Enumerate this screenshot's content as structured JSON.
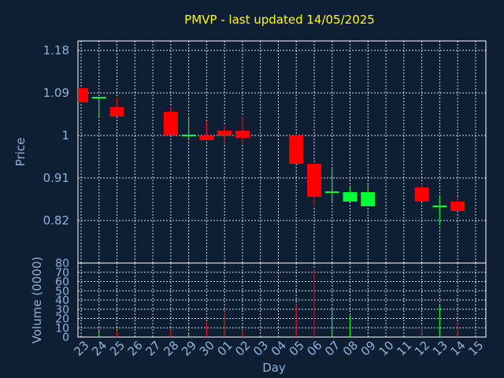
{
  "chart_data": {
    "type": "candlestick",
    "title": "PMVP - last updated 14/05/2025",
    "price_panel": {
      "ylabel": "Price",
      "ylim": [
        0.73,
        1.2
      ],
      "yticks": [
        "1.18",
        "1.09",
        "1",
        "0.91",
        "0.82"
      ],
      "ytick_values": [
        1.18,
        1.09,
        1.0,
        0.91,
        0.82
      ],
      "grid": true
    },
    "volume_panel": {
      "ylabel": "Volume (0000)",
      "ylim": [
        0,
        80
      ],
      "yticks": [
        "80",
        "70",
        "60",
        "50",
        "40",
        "30",
        "20",
        "10",
        "0"
      ],
      "ytick_values": [
        80,
        70,
        60,
        50,
        40,
        30,
        20,
        10,
        0
      ],
      "grid": true
    },
    "xlabel": "Day",
    "x_ticks": [
      "23",
      "24",
      "25",
      "26",
      "27",
      "28",
      "29",
      "30",
      "01",
      "02",
      "03",
      "04",
      "05",
      "06",
      "07",
      "08",
      "09",
      "10",
      "11",
      "12",
      "13",
      "14",
      "15"
    ],
    "colors": {
      "up": "#00ff33",
      "down": "#ff0000",
      "background": "#0f1f33",
      "grid": "#ffffff",
      "text": "#8fb4dc",
      "title": "#ffff00"
    },
    "candles": [
      {
        "day": "23",
        "open": 1.1,
        "high": 1.1,
        "low": 1.07,
        "close": 1.07,
        "volume": 0
      },
      {
        "day": "24",
        "open": 1.08,
        "high": 1.08,
        "low": 1.04,
        "close": 1.08,
        "volume": 8
      },
      {
        "day": "25",
        "open": 1.06,
        "high": 1.08,
        "low": 1.04,
        "close": 1.04,
        "volume": 7
      },
      {
        "day": "28",
        "open": 1.05,
        "high": 1.06,
        "low": 1.0,
        "close": 1.0,
        "volume": 8
      },
      {
        "day": "29",
        "open": 1.0,
        "high": 1.04,
        "low": 0.99,
        "close": 1.0,
        "volume": 5
      },
      {
        "day": "30",
        "open": 1.0,
        "high": 1.03,
        "low": 0.99,
        "close": 0.99,
        "volume": 15
      },
      {
        "day": "01",
        "open": 1.01,
        "high": 1.02,
        "low": 0.98,
        "close": 1.0,
        "volume": 28
      },
      {
        "day": "02",
        "open": 1.01,
        "high": 1.04,
        "low": 0.98,
        "close": 0.995,
        "volume": 8
      },
      {
        "day": "05",
        "open": 1.0,
        "high": 1.0,
        "low": 0.94,
        "close": 0.94,
        "volume": 35
      },
      {
        "day": "06",
        "open": 0.94,
        "high": 0.94,
        "low": 0.85,
        "close": 0.87,
        "volume": 73
      },
      {
        "day": "07",
        "open": 0.88,
        "high": 0.93,
        "low": 0.86,
        "close": 0.88,
        "volume": 30
      },
      {
        "day": "08",
        "open": 0.86,
        "high": 0.89,
        "low": 0.86,
        "close": 0.88,
        "volume": 23
      },
      {
        "day": "09",
        "open": 0.85,
        "high": 0.9,
        "low": 0.85,
        "close": 0.88,
        "volume": 0
      },
      {
        "day": "12",
        "open": 0.89,
        "high": 0.9,
        "low": 0.86,
        "close": 0.86,
        "volume": 12
      },
      {
        "day": "13",
        "open": 0.85,
        "high": 0.87,
        "low": 0.81,
        "close": 0.85,
        "volume": 34
      },
      {
        "day": "14",
        "open": 0.86,
        "high": 0.87,
        "low": 0.84,
        "close": 0.84,
        "volume": 15
      }
    ]
  }
}
